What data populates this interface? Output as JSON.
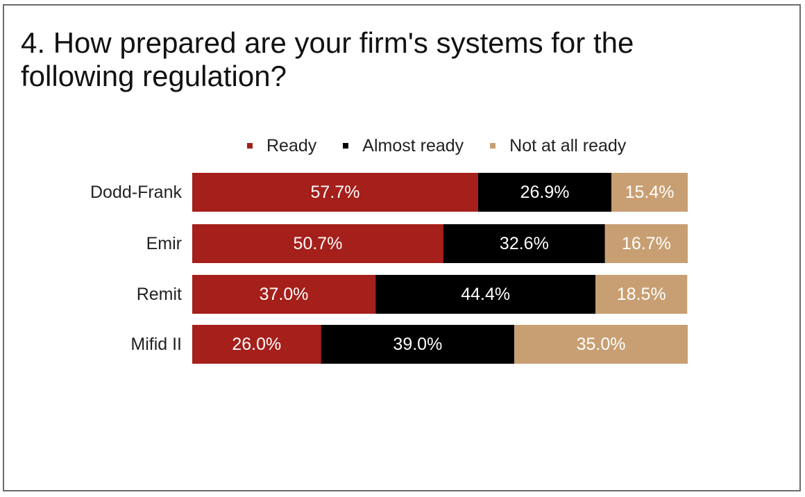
{
  "title": "4. How prepared are your firm's systems for the following regulation?",
  "chart_data": {
    "type": "bar",
    "orientation": "horizontal",
    "stacked": true,
    "title": "4. How prepared are your firm's systems for the following regulation?",
    "categories": [
      "Dodd-Frank",
      "Emir",
      "Remit",
      "Mifid II"
    ],
    "series": [
      {
        "name": "Ready",
        "color": "#a51f1b",
        "values": [
          57.7,
          50.7,
          37.0,
          26.0
        ],
        "labels": [
          "57.7%",
          "50.7%",
          "37.0%",
          "26.0%"
        ]
      },
      {
        "name": "Almost ready",
        "color": "#000000",
        "values": [
          26.9,
          32.6,
          44.4,
          39.0
        ],
        "labels": [
          "26.9%",
          "32.6%",
          "44.4%",
          "39.0%"
        ]
      },
      {
        "name": "Not at all ready",
        "color": "#c89f72",
        "values": [
          15.4,
          16.7,
          18.5,
          35.0
        ],
        "labels": [
          "15.4%",
          "16.7%",
          "18.5%",
          "35.0%"
        ]
      }
    ],
    "xlim": [
      0,
      100
    ],
    "unit": "%",
    "legend_position": "top",
    "grid": false
  }
}
